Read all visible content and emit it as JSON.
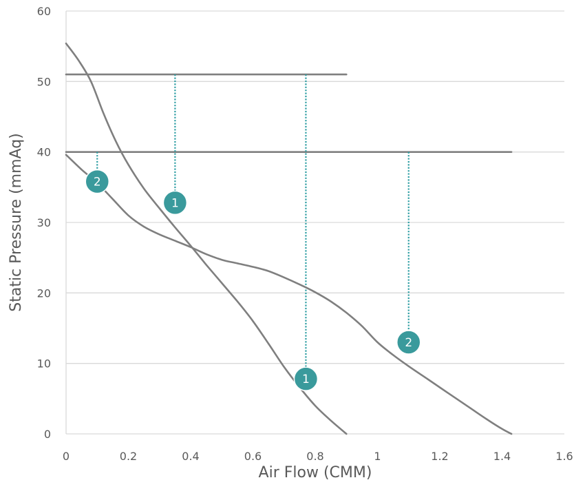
{
  "chart_data": {
    "type": "line",
    "title": "",
    "xlabel": "Air Flow (CMM)",
    "ylabel": "Static Pressure (mmAq)",
    "xlim": [
      0,
      1.6
    ],
    "ylim": [
      0,
      60
    ],
    "x_ticks": [
      {
        "value": 0,
        "label": "0"
      },
      {
        "value": 0.2,
        "label": "0.2"
      },
      {
        "value": 0.4,
        "label": "0.4"
      },
      {
        "value": 0.6,
        "label": "0.6"
      },
      {
        "value": 0.8,
        "label": "0.8"
      },
      {
        "value": 1.0,
        "label": "1"
      },
      {
        "value": 1.2,
        "label": "1.2"
      },
      {
        "value": 1.4,
        "label": "1.4"
      },
      {
        "value": 1.6,
        "label": "1.6"
      }
    ],
    "y_ticks": [
      {
        "value": 0,
        "label": "0"
      },
      {
        "value": 10,
        "label": "10"
      },
      {
        "value": 20,
        "label": "20"
      },
      {
        "value": 30,
        "label": "30"
      },
      {
        "value": 40,
        "label": "40"
      },
      {
        "value": 50,
        "label": "50"
      },
      {
        "value": 60,
        "label": "60"
      }
    ],
    "grid": {
      "horizontal": true,
      "vertical": false
    },
    "series": [
      {
        "curve": 1,
        "x": [
          0,
          0.04,
          0.08,
          0.12,
          0.16,
          0.2,
          0.25,
          0.3,
          0.35,
          0.4,
          0.45,
          0.5,
          0.55,
          0.6,
          0.65,
          0.7,
          0.75,
          0.8,
          0.85,
          0.9
        ],
        "y": [
          55.4,
          53.0,
          50.0,
          45.5,
          41.5,
          38.2,
          34.8,
          32.0,
          29.3,
          26.7,
          24.0,
          21.4,
          18.8,
          16.0,
          12.8,
          9.5,
          6.6,
          4.0,
          1.9,
          0
        ]
      },
      {
        "curve": 2,
        "x": [
          0,
          0.05,
          0.1,
          0.15,
          0.2,
          0.25,
          0.3,
          0.35,
          0.4,
          0.45,
          0.5,
          0.55,
          0.6,
          0.65,
          0.7,
          0.75,
          0.8,
          0.85,
          0.9,
          0.95,
          1.0,
          1.05,
          1.1,
          1.15,
          1.2,
          1.25,
          1.3,
          1.35,
          1.4,
          1.43
        ],
        "y": [
          39.6,
          37.5,
          35.6,
          33.3,
          31.0,
          29.4,
          28.3,
          27.4,
          26.5,
          25.5,
          24.7,
          24.2,
          23.7,
          23.1,
          22.2,
          21.2,
          20.1,
          18.8,
          17.2,
          15.3,
          13.0,
          11.2,
          9.6,
          8.1,
          6.6,
          5.1,
          3.6,
          2.1,
          0.7,
          0
        ]
      }
    ],
    "reference_lines": [
      {
        "y": 51,
        "x_start": 0,
        "x_end": 0.9
      },
      {
        "y": 40,
        "x_start": 0,
        "x_end": 1.43
      }
    ],
    "operating_points": [
      {
        "label": "1",
        "x": 0.35,
        "y": 32.8,
        "drop_from_y": 51
      },
      {
        "label": "1",
        "x": 0.77,
        "y": 7.8,
        "drop_from_y": 51
      },
      {
        "label": "2",
        "x": 0.1,
        "y": 35.8,
        "drop_from_y": 40
      },
      {
        "label": "2",
        "x": 1.1,
        "y": 13.0,
        "drop_from_y": 40
      }
    ],
    "colors": {
      "curve": "#7f7f7f",
      "grid": "#d9d9d9",
      "dotted": "#2e9ea3",
      "marker": "#3a9a9c",
      "text": "#595959"
    }
  }
}
